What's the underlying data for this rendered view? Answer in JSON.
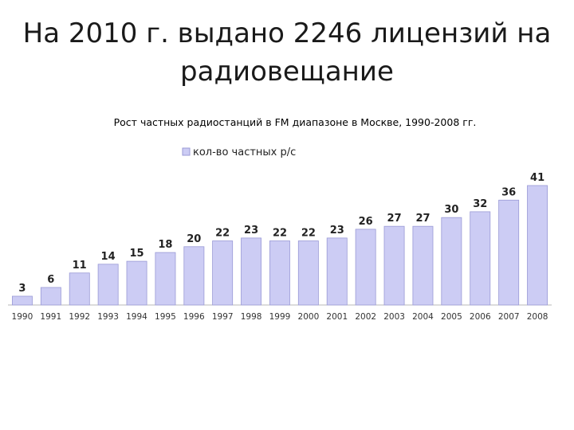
{
  "slide": {
    "title": "На 2010 г. выдано 2246 лицензий на радиовещание"
  },
  "chart_data": {
    "type": "bar",
    "title": "Рост частных радиостанций в FM диапазоне в Москве, 1990-2008 гг.",
    "xlabel": "",
    "ylabel": "",
    "legend": {
      "position": "top",
      "entries": [
        "кол-во частных р/с"
      ]
    },
    "grid": false,
    "ylim": [
      0,
      41
    ],
    "categories": [
      "1990",
      "1991",
      "1992",
      "1993",
      "1994",
      "1995",
      "1996",
      "1997",
      "1998",
      "1999",
      "2000",
      "2001",
      "2002",
      "2003",
      "2004",
      "2005",
      "2006",
      "2007",
      "2008"
    ],
    "series": [
      {
        "name": "кол-во частных р/с",
        "values": [
          3,
          6,
          11,
          14,
          15,
          18,
          20,
          22,
          23,
          22,
          22,
          23,
          26,
          27,
          27,
          30,
          32,
          36,
          41
        ]
      }
    ],
    "colors": {
      "bar_fill": "#ccccf4",
      "bar_stroke": "#9a9ad6",
      "axis": "#b8b8b8"
    }
  }
}
